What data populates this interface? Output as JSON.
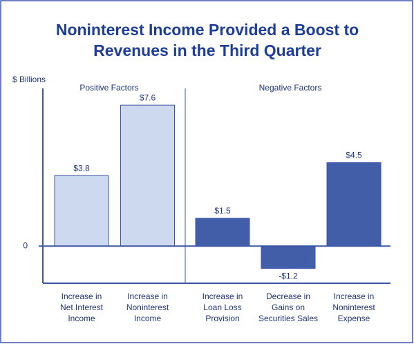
{
  "chart_data": {
    "type": "bar",
    "title": [
      "Noninterest Income Provided a Boost to",
      "Revenues in the Third Quarter"
    ],
    "ylabel": "$ Billions",
    "annotations": [
      "Positive Factors",
      "Negative Factors"
    ],
    "categories": [
      [
        "Increase in",
        "Net Interest",
        "Income"
      ],
      [
        "Increase in",
        "Noninterest",
        "Income"
      ],
      [
        "Increase in",
        "Loan Loss",
        "Provision"
      ],
      [
        "Decrease in",
        "Gains on",
        "Securities Sales"
      ],
      [
        "Increase in",
        "Noninterest",
        "Expense"
      ]
    ],
    "values": [
      3.8,
      7.6,
      1.5,
      -1.2,
      4.5
    ],
    "value_labels": [
      "$3.8",
      "$7.6",
      "$1.5",
      "-$1.2",
      "$4.5"
    ],
    "colors": [
      "#cdd9ee",
      "#cdd9ee",
      "#435ea8",
      "#435ea8",
      "#435ea8"
    ],
    "ylim": [
      -2,
      8.5
    ],
    "yticks": [
      0
    ]
  }
}
